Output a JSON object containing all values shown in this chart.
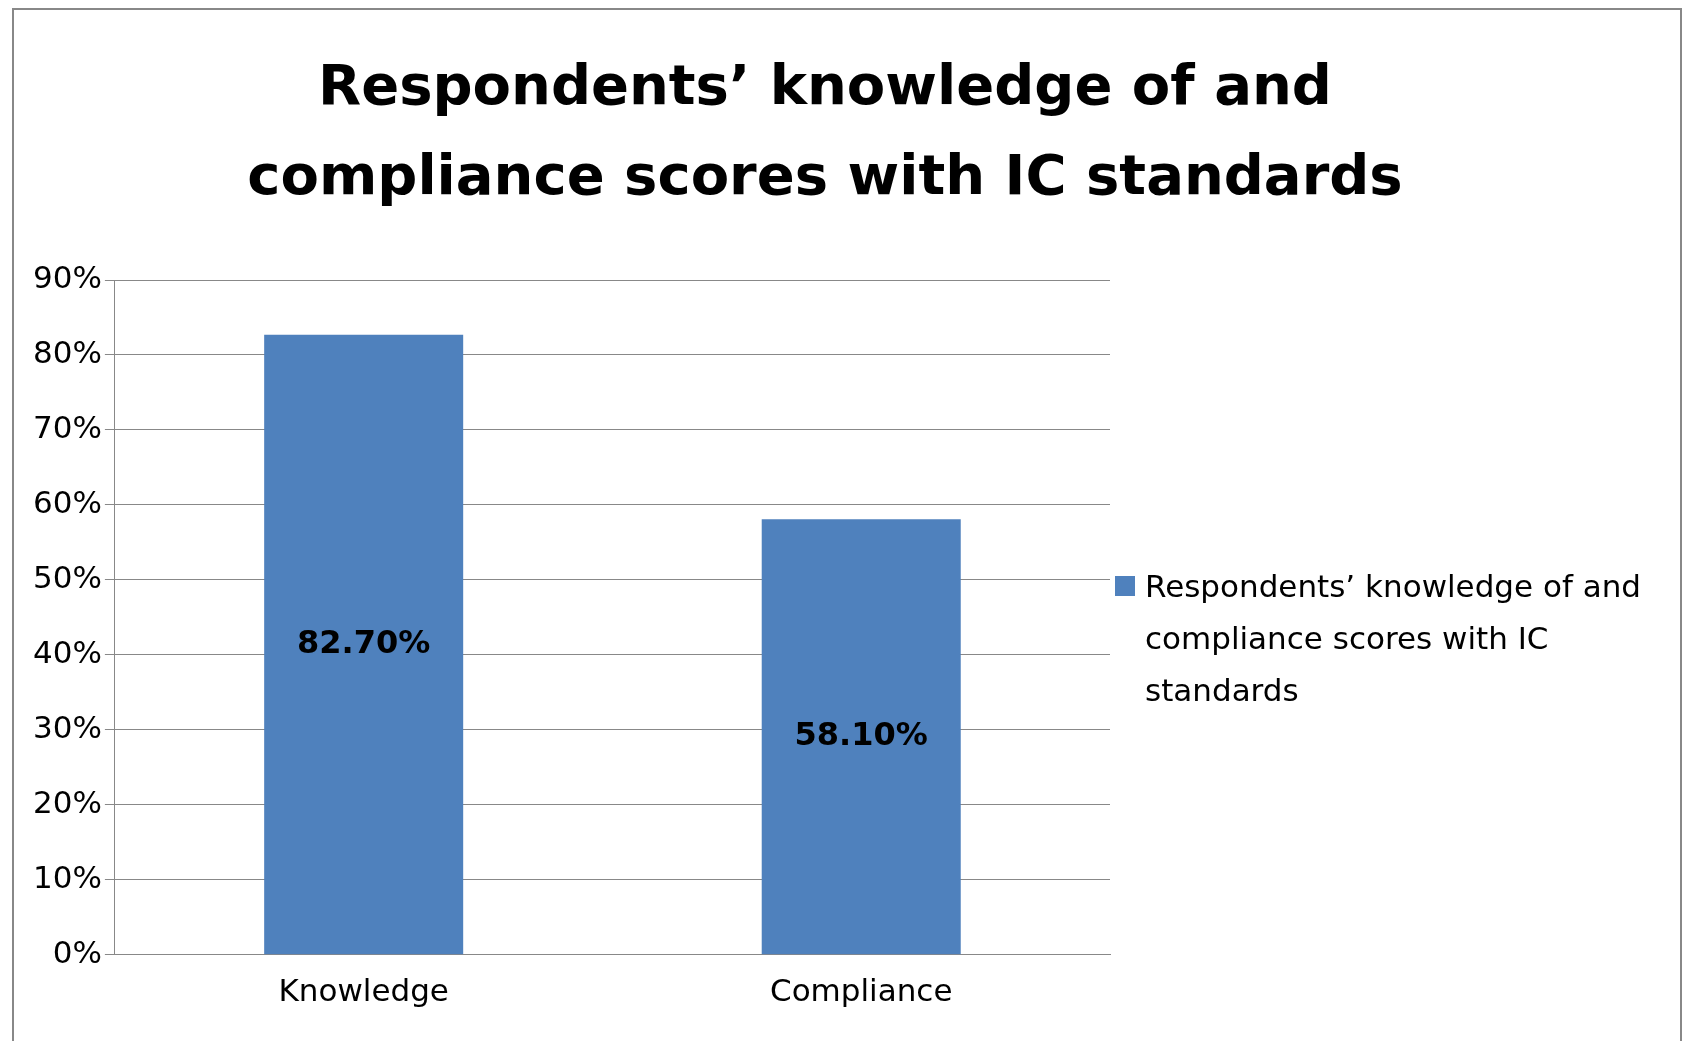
{
  "chart_data": {
    "type": "bar",
    "title": "Respondents’ knowledge of and compliance scores with IC standards",
    "categories": [
      "Knowledge",
      "Compliance"
    ],
    "series": [
      {
        "name": "Respondents’ knowledge of and compliance scores with IC standards",
        "color": "#4f81bd",
        "values": [
          82.7,
          58.1
        ],
        "value_labels": [
          "82.70%",
          "58.10%"
        ]
      }
    ],
    "ylim": [
      0,
      90
    ],
    "yticks": [
      {
        "value": 0,
        "label": "0%"
      },
      {
        "value": 10,
        "label": "10%"
      },
      {
        "value": 20,
        "label": "20%"
      },
      {
        "value": 30,
        "label": "30%"
      },
      {
        "value": 40,
        "label": "40%"
      },
      {
        "value": 50,
        "label": "50%"
      },
      {
        "value": 60,
        "label": "60%"
      },
      {
        "value": 70,
        "label": "70%"
      },
      {
        "value": 80,
        "label": "80%"
      },
      {
        "value": 90,
        "label": "90%"
      }
    ],
    "grid": "y",
    "legend": "right"
  }
}
